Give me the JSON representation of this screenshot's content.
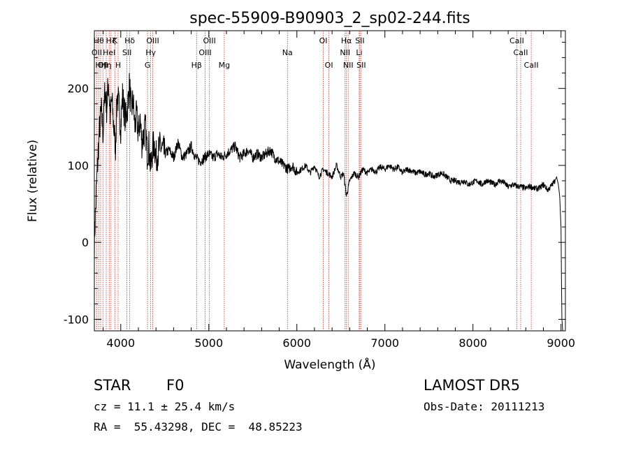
{
  "chart_data": {
    "type": "line",
    "title": "spec-55909-B90903_2_sp02-244.fits",
    "xlabel": "Wavelength (Å)",
    "ylabel": "Flux (relative)",
    "xlim": [
      3700,
      9050
    ],
    "ylim": [
      -115,
      275
    ],
    "xticks": [
      4000,
      5000,
      6000,
      7000,
      8000,
      9000
    ],
    "yticks": [
      -100,
      0,
      100,
      200
    ],
    "series": [
      {
        "x": [
          3700,
          3720,
          3740,
          3760,
          3780,
          3800,
          3820,
          3840,
          3860,
          3880,
          3900,
          3920,
          3940,
          3960,
          3980,
          4000,
          4020,
          4040,
          4060,
          4080,
          4100,
          4120,
          4140,
          4160,
          4180,
          4200,
          4220,
          4240,
          4260,
          4280,
          4300,
          4320,
          4340,
          4360,
          4380,
          4400,
          4450,
          4500,
          4550,
          4600,
          4650,
          4700,
          4750,
          4800,
          4850,
          4900,
          4950,
          5000,
          5050,
          5100,
          5150,
          5200,
          5250,
          5300,
          5350,
          5400,
          5450,
          5500,
          5550,
          5600,
          5650,
          5700,
          5750,
          5800,
          5850,
          5900,
          5950,
          6000,
          6050,
          6100,
          6150,
          6200,
          6250,
          6300,
          6350,
          6400,
          6450,
          6500,
          6530,
          6563,
          6600,
          6650,
          6700,
          6750,
          6800,
          6850,
          6900,
          6950,
          7000,
          7050,
          7100,
          7150,
          7200,
          7250,
          7300,
          7350,
          7400,
          7450,
          7500,
          7550,
          7600,
          7650,
          7700,
          7750,
          7800,
          7850,
          7900,
          7950,
          8000,
          8050,
          8100,
          8150,
          8200,
          8250,
          8300,
          8350,
          8400,
          8450,
          8500,
          8550,
          8600,
          8650,
          8700,
          8750,
          8800,
          8850,
          8900,
          8930,
          8950,
          8970,
          8985,
          9000,
          9010,
          9020
        ],
        "y": [
          0,
          60,
          110,
          150,
          170,
          140,
          200,
          175,
          210,
          165,
          185,
          150,
          125,
          195,
          175,
          150,
          190,
          170,
          160,
          180,
          205,
          170,
          185,
          150,
          165,
          140,
          160,
          130,
          140,
          150,
          115,
          125,
          95,
          120,
          130,
          110,
          125,
          115,
          120,
          110,
          130,
          110,
          115,
          125,
          110,
          105,
          110,
          115,
          110,
          115,
          110,
          115,
          120,
          125,
          110,
          115,
          120,
          110,
          115,
          110,
          115,
          120,
          110,
          105,
          100,
          95,
          100,
          90,
          95,
          100,
          90,
          100,
          85,
          95,
          90,
          85,
          100,
          85,
          90,
          60,
          80,
          90,
          85,
          95,
          90,
          95,
          92,
          98,
          95,
          100,
          95,
          98,
          90,
          95,
          93,
          90,
          92,
          88,
          90,
          85,
          88,
          90,
          85,
          80,
          80,
          78,
          80,
          75,
          78,
          80,
          75,
          80,
          78,
          75,
          80,
          78,
          72,
          75,
          73,
          72,
          70,
          73,
          70,
          70,
          75,
          68,
          75,
          80,
          85,
          75,
          60,
          20,
          -100,
          -115
        ]
      }
    ],
    "lines": [
      {
        "wave": 3727,
        "label": "OII",
        "row": 2
      },
      {
        "wave": 3750,
        "label": "Hθ",
        "row": 1
      },
      {
        "wave": 3771,
        "label": "Hη",
        "row": 3
      },
      {
        "wave": 3797,
        "label": "OII",
        "row": 3
      },
      {
        "wave": 3835,
        "label": "Hη",
        "row": 3
      },
      {
        "wave": 3869,
        "label": "HeI",
        "row": 2
      },
      {
        "wave": 3889,
        "label": "Hζ",
        "row": 1
      },
      {
        "wave": 3934,
        "label": "K",
        "row": 1
      },
      {
        "wave": 3970,
        "label": "H",
        "row": 3
      },
      {
        "wave": 4070,
        "label": "SII",
        "row": 2
      },
      {
        "wave": 4102,
        "label": "Hδ",
        "row": 1
      },
      {
        "wave": 4304,
        "label": "G",
        "row": 3
      },
      {
        "wave": 4340,
        "label": "Hγ",
        "row": 2
      },
      {
        "wave": 4363,
        "label": "OIII",
        "row": 1
      },
      {
        "wave": 4861,
        "label": "Hβ",
        "row": 3
      },
      {
        "wave": 4959,
        "label": "OIII",
        "row": 2
      },
      {
        "wave": 5007,
        "label": "OIII",
        "row": 1
      },
      {
        "wave": 5175,
        "label": "Mg",
        "row": 3
      },
      {
        "wave": 5893,
        "label": "Na",
        "row": 2
      },
      {
        "wave": 6300,
        "label": "OI",
        "row": 1
      },
      {
        "wave": 6364,
        "label": "OI",
        "row": 3
      },
      {
        "wave": 6548,
        "label": "NII",
        "row": 2
      },
      {
        "wave": 6563,
        "label": "Hα",
        "row": 1
      },
      {
        "wave": 6583,
        "label": "NII",
        "row": 3
      },
      {
        "wave": 6708,
        "label": "Li",
        "row": 2
      },
      {
        "wave": 6716,
        "label": "SII",
        "row": 1
      },
      {
        "wave": 6731,
        "label": "SII",
        "row": 3
      },
      {
        "wave": 8498,
        "label": "CaII",
        "row": 1
      },
      {
        "wave": 8542,
        "label": "CaII",
        "row": 2
      },
      {
        "wave": 8662,
        "label": "CaII",
        "row": 3
      }
    ],
    "line_color": "#c0392b",
    "grid": false
  },
  "info": {
    "obj_class": "STAR",
    "subclass": "F0",
    "survey": "LAMOST DR5",
    "redshift": "cz = 11.1 ± 25.4 km/s",
    "obs_date": "Obs-Date: 20111213",
    "coords": "RA =  55.43298, DEC =  48.85223"
  }
}
